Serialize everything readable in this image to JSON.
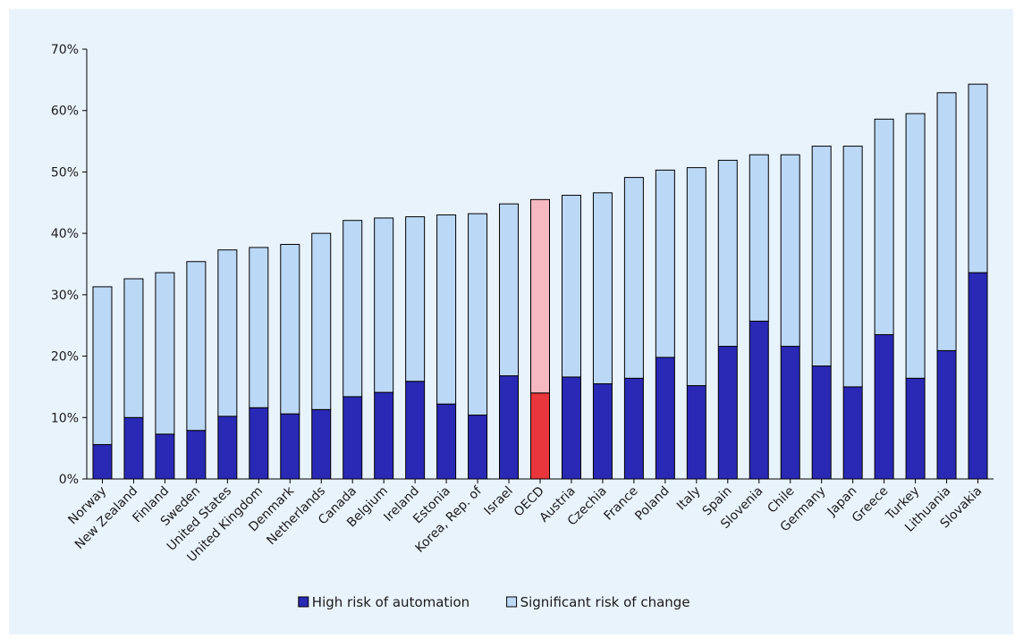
{
  "chart_data": {
    "type": "bar",
    "stacked": true,
    "categories": [
      "Norway",
      "New Zealand",
      "Finland",
      "Sweden",
      "United States",
      "United Kingdom",
      "Denmark",
      "Netherlands",
      "Canada",
      "Belgium",
      "Ireland",
      "Estonia",
      "Korea, Rep. of",
      "Israel",
      "OECD",
      "Austria",
      "Czechia",
      "France",
      "Poland",
      "Italy",
      "Spain",
      "Slovenia",
      "Chile",
      "Germany",
      "Japan",
      "Greece",
      "Turkey",
      "Lithuania",
      "Slovakia"
    ],
    "series": [
      {
        "name": "High risk of automation",
        "color": "#2929b5",
        "highlight_color": "#e8363c",
        "values": [
          5.6,
          10.0,
          7.3,
          7.9,
          10.2,
          11.6,
          10.6,
          11.3,
          13.4,
          14.1,
          15.9,
          12.2,
          10.4,
          16.8,
          14.0,
          16.6,
          15.5,
          16.4,
          19.8,
          15.2,
          21.6,
          25.7,
          21.6,
          18.4,
          15.0,
          23.5,
          16.4,
          20.9,
          33.6
        ]
      },
      {
        "name": "Significant risk of change",
        "color": "#bcd8f7",
        "highlight_color": "#f6b8c1",
        "values": [
          25.7,
          22.6,
          26.3,
          27.5,
          27.1,
          26.1,
          27.6,
          28.7,
          28.7,
          28.4,
          26.8,
          30.8,
          32.8,
          28.0,
          31.5,
          29.6,
          31.1,
          32.7,
          30.5,
          35.5,
          30.3,
          27.1,
          31.2,
          35.8,
          39.2,
          35.1,
          43.1,
          42.0,
          30.7
        ]
      }
    ],
    "highlight_category": "OECD",
    "ylim": [
      0,
      70
    ],
    "y_ticks": [
      0,
      10,
      20,
      30,
      40,
      50,
      60,
      70
    ],
    "y_tick_labels": [
      "0%",
      "10%",
      "20%",
      "30%",
      "40%",
      "50%",
      "60%",
      "70%"
    ],
    "legend_position": "bottom-center",
    "grid": false,
    "background": "#e9f3fc",
    "xlabel": "",
    "ylabel": ""
  }
}
